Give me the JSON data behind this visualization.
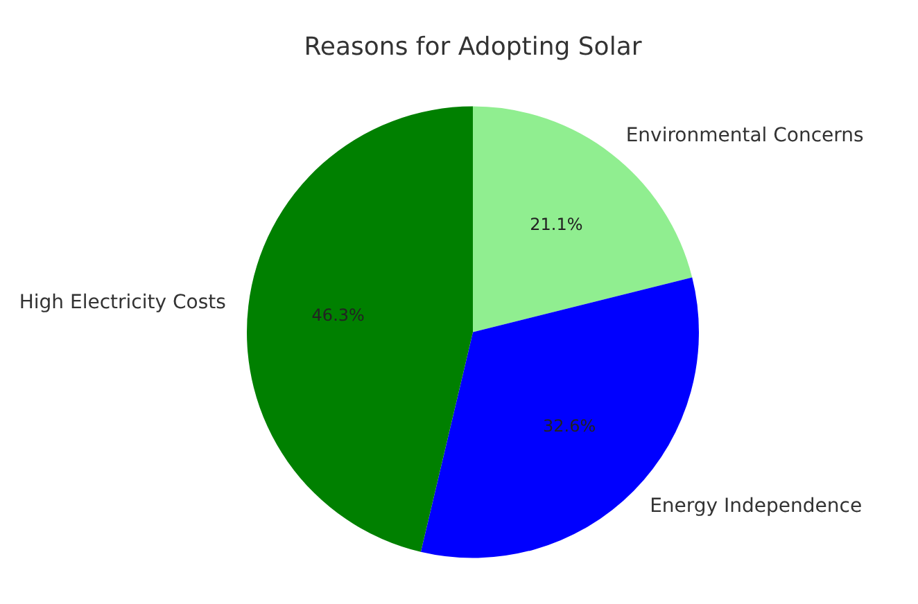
{
  "chart_data": {
    "type": "pie",
    "title": "Reasons for Adopting Solar",
    "categories": [
      "Environmental Concerns",
      "Energy Independence",
      "High Electricity Costs"
    ],
    "values": [
      21.1,
      32.6,
      46.3
    ],
    "colors": [
      "#90ee90",
      "#0000ff",
      "#008000"
    ],
    "value_labels": [
      "21.1%",
      "32.6%",
      "46.3%"
    ],
    "legend": false
  }
}
